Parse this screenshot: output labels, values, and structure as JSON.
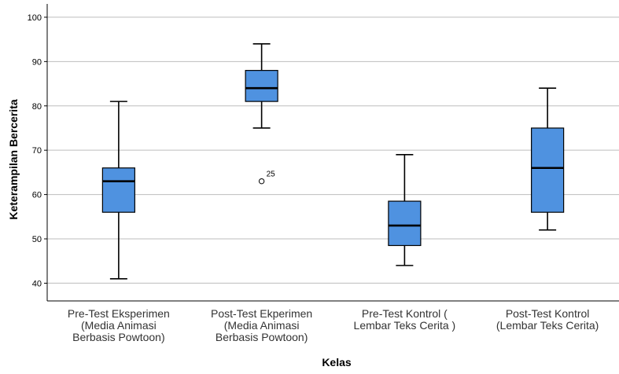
{
  "chart_data": {
    "type": "boxplot",
    "xlabel": "Kelas",
    "ylabel": "Keterampilan Bercerita",
    "ylim": [
      36,
      103
    ],
    "yticks": [
      40,
      50,
      60,
      70,
      80,
      90,
      100
    ],
    "grid": true,
    "box_color": "#4f92e0",
    "categories": [
      [
        "Pre-Test Eksperimen",
        "(Media Animasi",
        "Berbasis Powtoon)"
      ],
      [
        "Post-Test Ekperimen",
        "(Media Animasi",
        "Berbasis Powtoon)"
      ],
      [
        "Pre-Test Kontrol (",
        "Lembar Teks Cerita )"
      ],
      [
        "Post-Test Kontrol",
        "(Lembar Teks Cerita)"
      ]
    ],
    "boxes": [
      {
        "min": 41,
        "q1": 56,
        "median": 63,
        "q3": 66,
        "max": 81,
        "outliers": []
      },
      {
        "min": 75,
        "q1": 81,
        "median": 84,
        "q3": 88,
        "max": 94,
        "outliers": [
          {
            "value": 63,
            "label": "25"
          }
        ]
      },
      {
        "min": 44,
        "q1": 48.5,
        "median": 53,
        "q3": 58.5,
        "max": 69,
        "outliers": []
      },
      {
        "min": 52,
        "q1": 56,
        "median": 66,
        "q3": 75,
        "max": 84,
        "outliers": []
      }
    ]
  }
}
